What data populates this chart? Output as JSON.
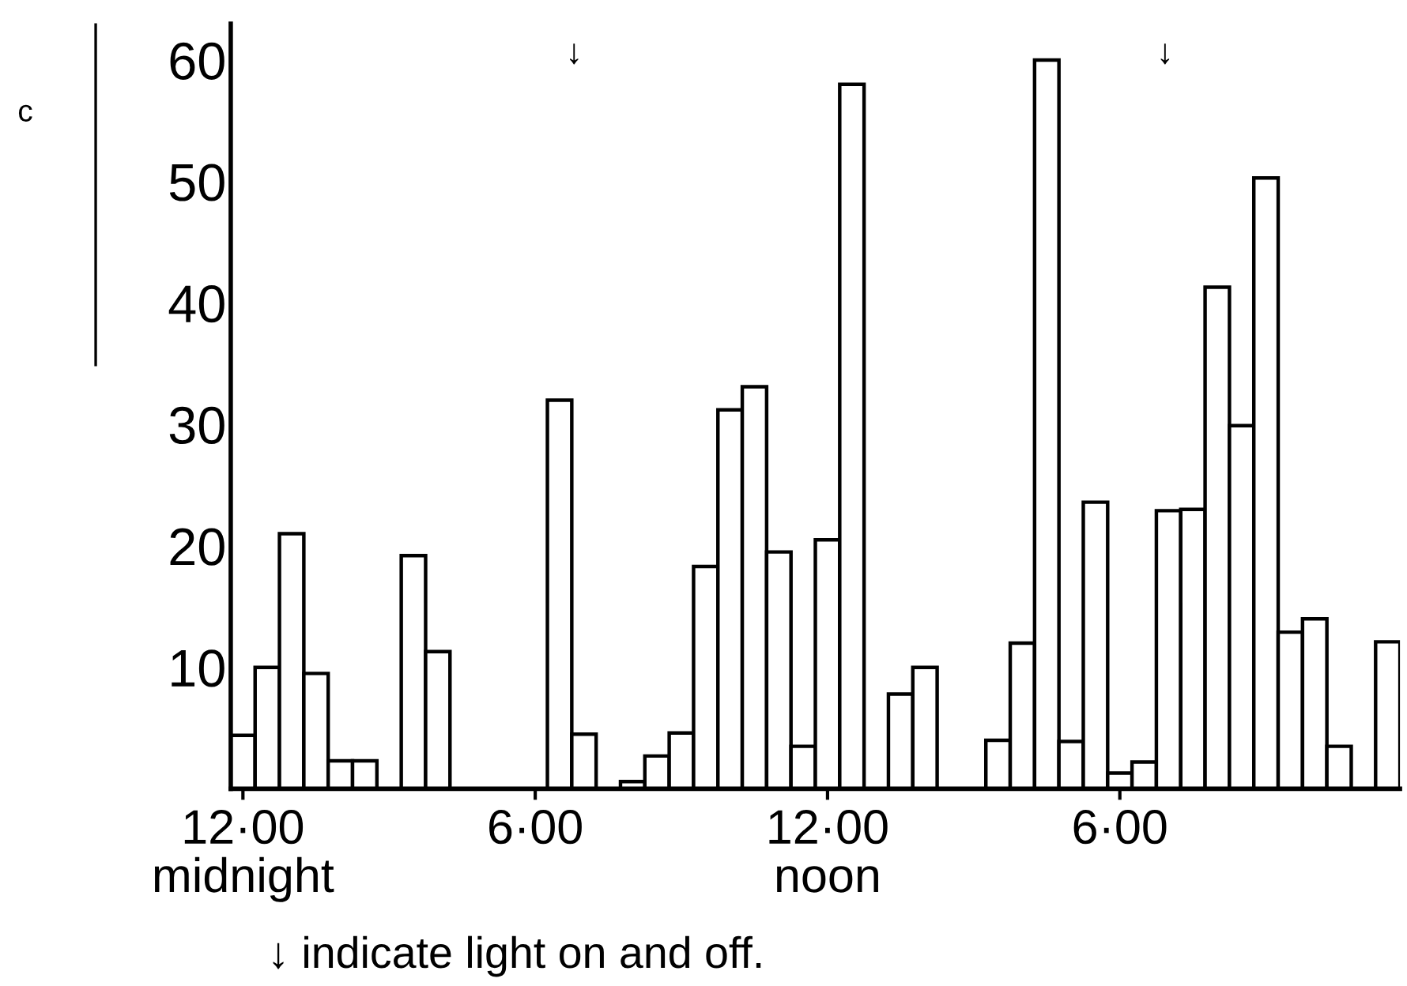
{
  "chart_data": {
    "type": "bar",
    "categories": [
      "12·00\nmidnight",
      null,
      null,
      null,
      null,
      null,
      null,
      null,
      null,
      null,
      null,
      null,
      "6·00",
      null,
      null,
      null,
      null,
      null,
      null,
      null,
      null,
      null,
      null,
      null,
      "12·00\nnoon",
      null,
      null,
      null,
      null,
      null,
      null,
      null,
      null,
      null,
      null,
      null,
      "6·00",
      null,
      null,
      null,
      null,
      null,
      null,
      null,
      null,
      null,
      null,
      null
    ],
    "values": [
      4.4,
      10,
      21,
      9.5,
      2.3,
      2.3,
      0,
      19.2,
      11.3,
      0,
      0,
      0,
      0,
      32,
      4.5,
      0,
      0.6,
      2.7,
      4.6,
      18.3,
      31.2,
      33.1,
      19.5,
      3.5,
      20.5,
      58,
      0,
      7.8,
      10,
      0,
      0,
      4,
      12,
      60,
      3.9,
      23.6,
      1.3,
      2.2,
      22.9,
      23,
      41.3,
      29.9,
      50.3,
      12.9,
      14,
      3.5,
      0,
      12.1
    ],
    "color": "#ffffff",
    "ylim": [
      0,
      63
    ],
    "yticks": [
      10,
      20,
      30,
      40,
      50,
      60
    ],
    "grid": false,
    "annotations": [
      "↓",
      "↓",
      "↓ indicate light on and off.",
      "c"
    ]
  }
}
